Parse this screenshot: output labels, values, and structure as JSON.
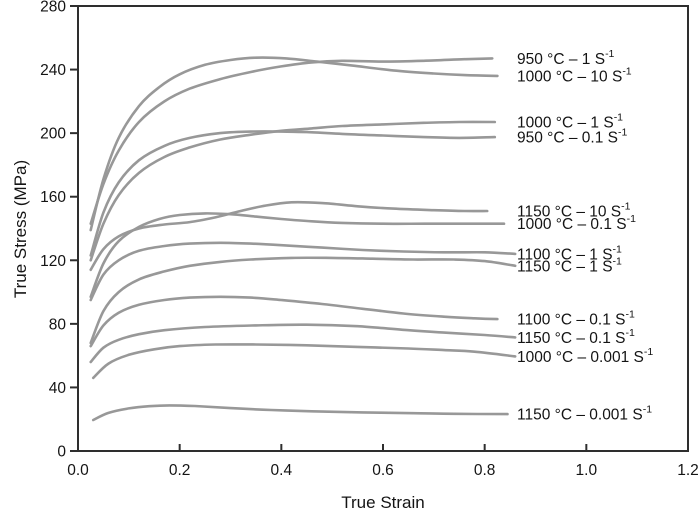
{
  "figure": {
    "background": "#ffffff",
    "curve_color": "#989898",
    "axis_color": "#2e2e2e",
    "text_color": "#141414"
  },
  "chart_data": {
    "type": "line",
    "title": "",
    "xlabel": "True Strain",
    "ylabel": "True Stress (MPa)",
    "xlim": [
      0,
      1.2
    ],
    "ylim": [
      0,
      280
    ],
    "xticks": [
      0,
      0.2,
      0.4,
      0.6,
      0.8,
      1.0,
      1.2
    ],
    "xtick_labels": [
      "0.0",
      "0.2",
      "0.4",
      "0.6",
      "0.8",
      "1.0",
      "1.2"
    ],
    "yticks": [
      0,
      40,
      80,
      120,
      160,
      200,
      240,
      280
    ],
    "ytick_labels": [
      "0",
      "40",
      "80",
      "120",
      "160",
      "200",
      "240",
      "280"
    ],
    "grid": false,
    "legend_position": "labels-right-of-curves",
    "series": [
      {
        "id": "950C-1s",
        "label_main": "950 °C – 1 S",
        "label_sup": "-1",
        "points": [
          [
            0.025,
            143
          ],
          [
            0.05,
            168
          ],
          [
            0.08,
            189
          ],
          [
            0.12,
            207
          ],
          [
            0.17,
            220
          ],
          [
            0.22,
            228
          ],
          [
            0.28,
            234
          ],
          [
            0.34,
            238.5
          ],
          [
            0.4,
            242
          ],
          [
            0.46,
            244.5
          ],
          [
            0.52,
            245.5
          ],
          [
            0.6,
            245
          ],
          [
            0.68,
            245.5
          ],
          [
            0.76,
            246.5
          ],
          [
            0.815,
            247
          ]
        ]
      },
      {
        "id": "1000C-10s",
        "label_main": "1000 °C – 10 S",
        "label_sup": "-1",
        "points": [
          [
            0.025,
            139
          ],
          [
            0.05,
            171
          ],
          [
            0.08,
            197
          ],
          [
            0.12,
            217
          ],
          [
            0.16,
            229
          ],
          [
            0.2,
            237
          ],
          [
            0.25,
            243
          ],
          [
            0.3,
            246
          ],
          [
            0.35,
            247.5
          ],
          [
            0.41,
            247
          ],
          [
            0.47,
            245
          ],
          [
            0.54,
            242.5
          ],
          [
            0.62,
            239.5
          ],
          [
            0.7,
            237.5
          ],
          [
            0.76,
            236.5
          ],
          [
            0.825,
            236
          ]
        ]
      },
      {
        "id": "1000C-1s",
        "label_main": "1000 °C – 1 S",
        "label_sup": "-1",
        "points": [
          [
            0.025,
            120
          ],
          [
            0.05,
            143
          ],
          [
            0.08,
            161
          ],
          [
            0.12,
            175
          ],
          [
            0.17,
            185
          ],
          [
            0.22,
            191
          ],
          [
            0.28,
            196
          ],
          [
            0.34,
            199
          ],
          [
            0.4,
            201.5
          ],
          [
            0.46,
            203
          ],
          [
            0.52,
            204.5
          ],
          [
            0.6,
            205.5
          ],
          [
            0.68,
            206.5
          ],
          [
            0.75,
            207
          ],
          [
            0.82,
            207
          ]
        ]
      },
      {
        "id": "950C-0.1s",
        "label_main": "950 °C – 0.1 S",
        "label_sup": "-1",
        "points": [
          [
            0.025,
            123
          ],
          [
            0.05,
            150
          ],
          [
            0.08,
            169
          ],
          [
            0.12,
            183
          ],
          [
            0.17,
            192
          ],
          [
            0.22,
            197
          ],
          [
            0.28,
            200
          ],
          [
            0.34,
            201
          ],
          [
            0.4,
            201
          ],
          [
            0.46,
            200.5
          ],
          [
            0.52,
            199.5
          ],
          [
            0.6,
            198.5
          ],
          [
            0.68,
            197.5
          ],
          [
            0.75,
            197
          ],
          [
            0.82,
            197.5
          ]
        ]
      },
      {
        "id": "1150C-10s",
        "label_main": "1150 °C – 10 S",
        "label_sup": "-1",
        "points": [
          [
            0.025,
            114
          ],
          [
            0.05,
            127
          ],
          [
            0.08,
            135
          ],
          [
            0.12,
            140
          ],
          [
            0.17,
            142.5
          ],
          [
            0.22,
            144
          ],
          [
            0.27,
            147
          ],
          [
            0.32,
            151
          ],
          [
            0.37,
            154.5
          ],
          [
            0.42,
            156.5
          ],
          [
            0.48,
            156
          ],
          [
            0.55,
            154
          ],
          [
            0.62,
            152.5
          ],
          [
            0.7,
            151.5
          ],
          [
            0.76,
            151
          ],
          [
            0.805,
            151
          ]
        ]
      },
      {
        "id": "1000C-0.1s",
        "label_main": "1000 °C – 0.1 S",
        "label_sup": "-1",
        "points": [
          [
            0.025,
            97
          ],
          [
            0.05,
            118
          ],
          [
            0.08,
            132
          ],
          [
            0.12,
            141
          ],
          [
            0.16,
            146
          ],
          [
            0.2,
            148.5
          ],
          [
            0.25,
            149.5
          ],
          [
            0.3,
            149
          ],
          [
            0.35,
            147.5
          ],
          [
            0.4,
            146
          ],
          [
            0.46,
            144.5
          ],
          [
            0.52,
            143.5
          ],
          [
            0.6,
            143
          ],
          [
            0.68,
            143
          ],
          [
            0.75,
            143
          ],
          [
            0.838,
            143
          ]
        ]
      },
      {
        "id": "1100C-1s",
        "label_main": "1100 °C – 1 S",
        "label_sup": "-1",
        "points": [
          [
            0.025,
            95
          ],
          [
            0.05,
            111
          ],
          [
            0.08,
            120
          ],
          [
            0.12,
            126
          ],
          [
            0.17,
            129
          ],
          [
            0.22,
            130.5
          ],
          [
            0.28,
            131
          ],
          [
            0.34,
            130.5
          ],
          [
            0.4,
            129.5
          ],
          [
            0.48,
            128
          ],
          [
            0.56,
            126.5
          ],
          [
            0.64,
            125.5
          ],
          [
            0.72,
            125
          ],
          [
            0.8,
            125
          ],
          [
            0.86,
            124
          ]
        ]
      },
      {
        "id": "1150C-1s",
        "label_main": "1150 °C – 1 S",
        "label_sup": "-1",
        "points": [
          [
            0.025,
            68
          ],
          [
            0.05,
            88
          ],
          [
            0.08,
            100
          ],
          [
            0.12,
            108
          ],
          [
            0.17,
            113
          ],
          [
            0.22,
            116.5
          ],
          [
            0.28,
            119
          ],
          [
            0.34,
            120.5
          ],
          [
            0.42,
            121.5
          ],
          [
            0.5,
            121.5
          ],
          [
            0.58,
            121
          ],
          [
            0.66,
            120.5
          ],
          [
            0.74,
            120.5
          ],
          [
            0.8,
            119.5
          ],
          [
            0.86,
            116.5
          ]
        ]
      },
      {
        "id": "1100C-0.1s",
        "label_main": "1100 °C – 0.1 S",
        "label_sup": "-1",
        "points": [
          [
            0.025,
            66
          ],
          [
            0.05,
            79
          ],
          [
            0.08,
            87
          ],
          [
            0.12,
            92
          ],
          [
            0.17,
            95
          ],
          [
            0.22,
            96.5
          ],
          [
            0.28,
            97
          ],
          [
            0.34,
            96.5
          ],
          [
            0.4,
            95
          ],
          [
            0.48,
            92.5
          ],
          [
            0.56,
            89.5
          ],
          [
            0.64,
            86.5
          ],
          [
            0.72,
            84.5
          ],
          [
            0.78,
            83.5
          ],
          [
            0.825,
            83
          ]
        ]
      },
      {
        "id": "1150C-0.1s",
        "label_main": "1150 °C – 0.1 S",
        "label_sup": "-1",
        "points": [
          [
            0.025,
            56
          ],
          [
            0.05,
            65
          ],
          [
            0.08,
            70
          ],
          [
            0.12,
            73.5
          ],
          [
            0.17,
            76
          ],
          [
            0.25,
            78
          ],
          [
            0.35,
            79
          ],
          [
            0.45,
            79.5
          ],
          [
            0.55,
            78.5
          ],
          [
            0.65,
            76
          ],
          [
            0.72,
            74.5
          ],
          [
            0.8,
            73
          ],
          [
            0.86,
            71.5
          ]
        ]
      },
      {
        "id": "1000C-0.001s",
        "label_main": "1000 °C – 0.001 S",
        "label_sup": "-1",
        "points": [
          [
            0.03,
            46
          ],
          [
            0.06,
            55
          ],
          [
            0.1,
            60.5
          ],
          [
            0.15,
            64
          ],
          [
            0.2,
            66
          ],
          [
            0.27,
            67
          ],
          [
            0.35,
            67
          ],
          [
            0.45,
            66.5
          ],
          [
            0.55,
            65.5
          ],
          [
            0.65,
            64.5
          ],
          [
            0.72,
            63.5
          ],
          [
            0.78,
            62.5
          ],
          [
            0.86,
            59.5
          ]
        ]
      },
      {
        "id": "1150C-0.001s",
        "label_main": "1150 °C – 0.001 S",
        "label_sup": "-1",
        "points": [
          [
            0.03,
            19.5
          ],
          [
            0.06,
            24
          ],
          [
            0.1,
            26.8
          ],
          [
            0.14,
            28.2
          ],
          [
            0.18,
            28.7
          ],
          [
            0.23,
            28.3
          ],
          [
            0.3,
            27
          ],
          [
            0.38,
            25.8
          ],
          [
            0.46,
            25
          ],
          [
            0.56,
            24.3
          ],
          [
            0.66,
            23.8
          ],
          [
            0.74,
            23.4
          ],
          [
            0.845,
            23.2
          ]
        ]
      }
    ]
  }
}
